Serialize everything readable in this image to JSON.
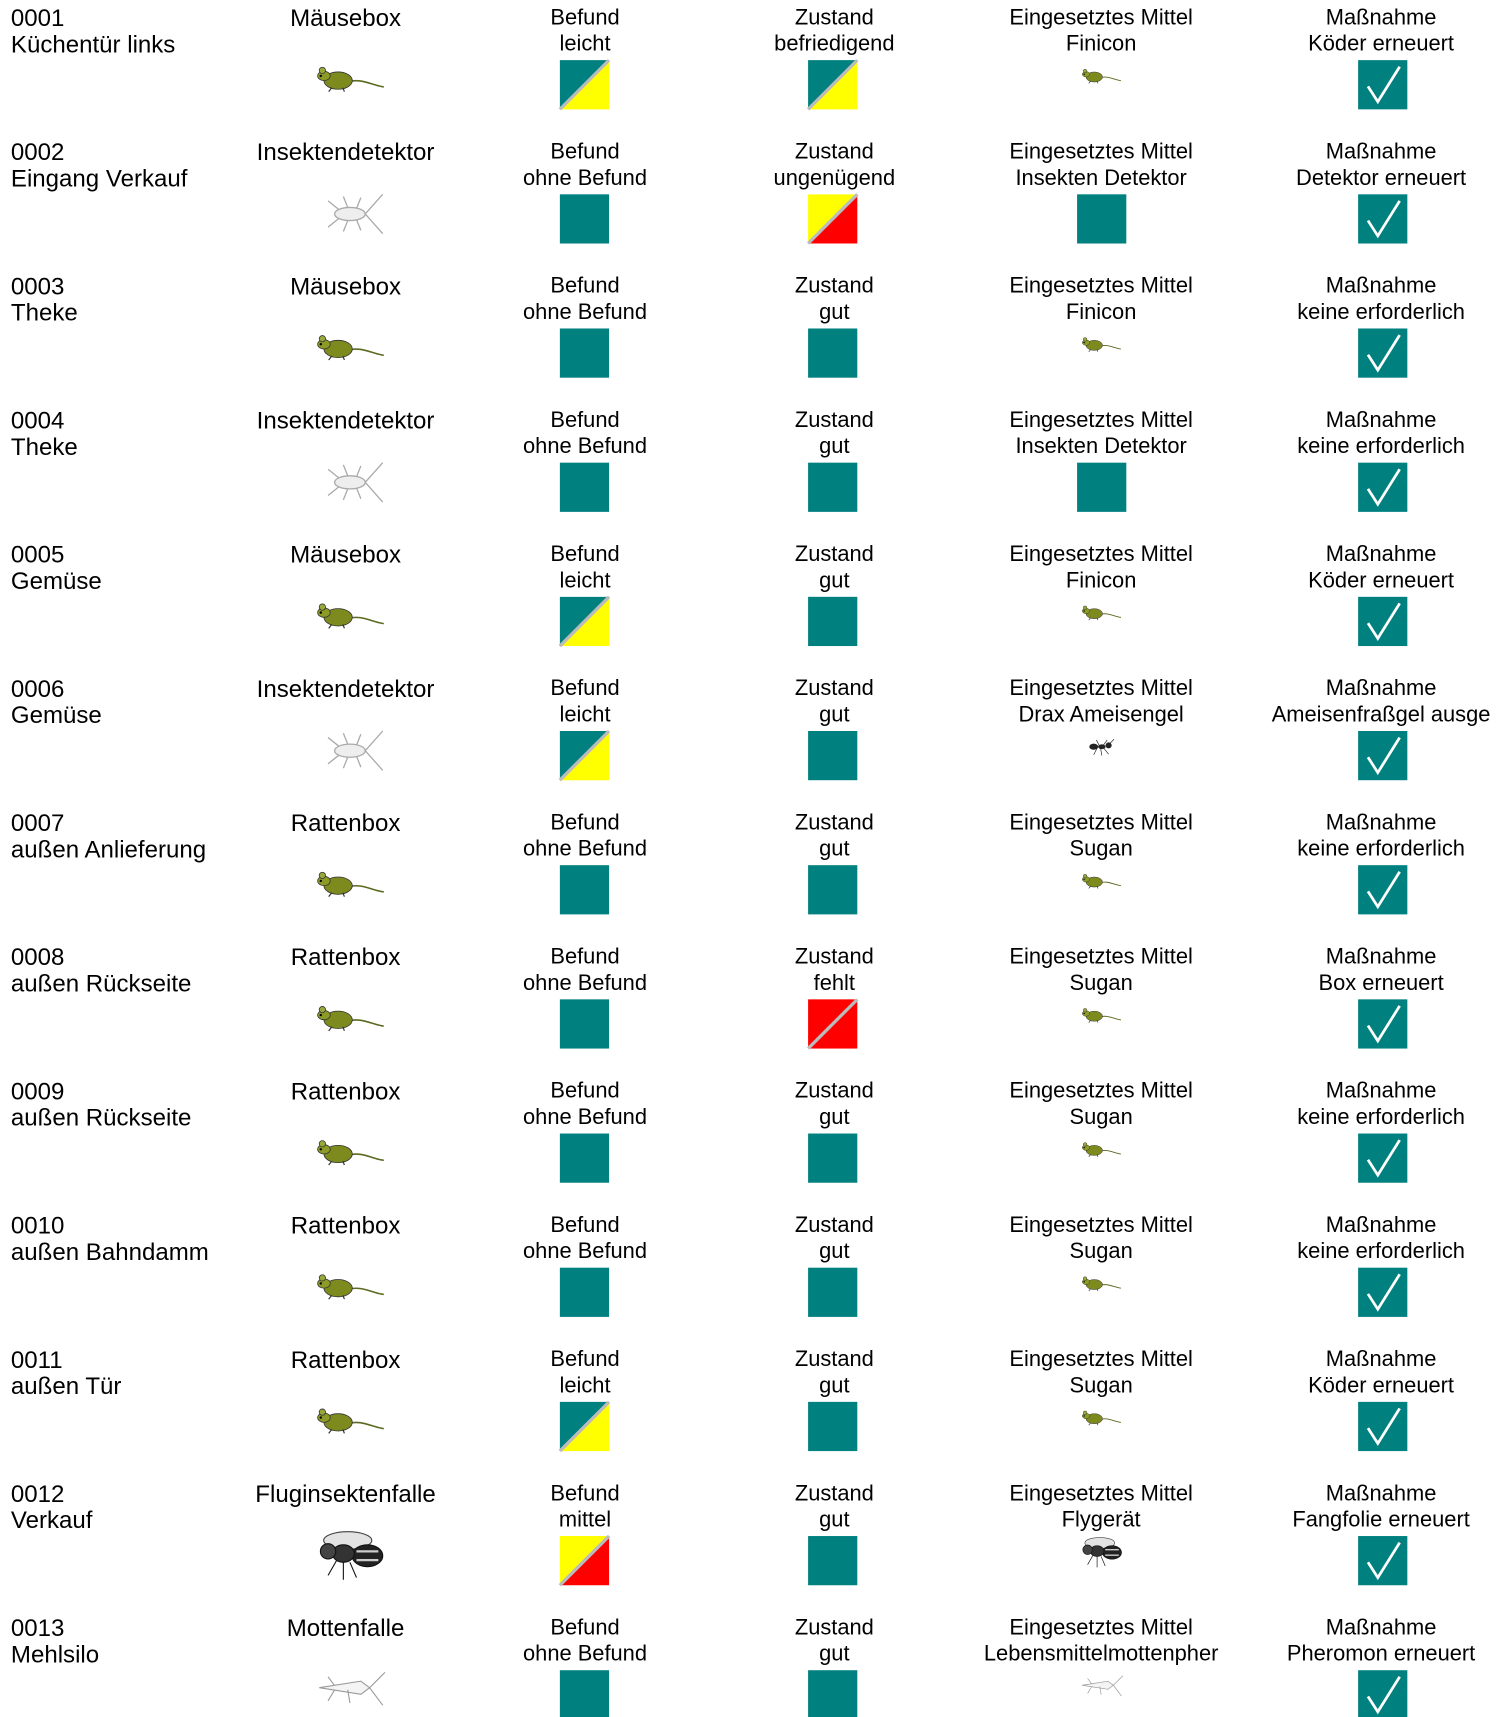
{
  "rows": [
    {
      "id": "0001",
      "location": "Küchentür links",
      "type": "Mäusebox",
      "befund_label": "Befund",
      "befund": "leicht",
      "zustand_label": "Zustand",
      "zustand": "befriedigend",
      "mittel_label": "Eingesetztes Mittel",
      "mittel": "Finicon",
      "massnahme_label": "Maßnahme",
      "massnahme": "Köder erneuert"
    },
    {
      "id": "0002",
      "location": "Eingang Verkauf",
      "type": "Insektendetektor",
      "befund_label": "Befund",
      "befund": "ohne Befund",
      "zustand_label": "Zustand",
      "zustand": "ungenügend",
      "mittel_label": "Eingesetztes Mittel",
      "mittel": "Insekten Detektor",
      "massnahme_label": "Maßnahme",
      "massnahme": "Detektor erneuert"
    },
    {
      "id": "0003",
      "location": "Theke",
      "type": "Mäusebox",
      "befund_label": "Befund",
      "befund": "ohne Befund",
      "zustand_label": "Zustand",
      "zustand": "gut",
      "mittel_label": "Eingesetztes Mittel",
      "mittel": "Finicon",
      "massnahme_label": "Maßnahme",
      "massnahme": "keine erforderlich"
    },
    {
      "id": "0004",
      "location": "Theke",
      "type": "Insektendetektor",
      "befund_label": "Befund",
      "befund": "ohne Befund",
      "zustand_label": "Zustand",
      "zustand": "gut",
      "mittel_label": "Eingesetztes Mittel",
      "mittel": "Insekten Detektor",
      "massnahme_label": "Maßnahme",
      "massnahme": "keine erforderlich"
    },
    {
      "id": "0005",
      "location": "Gemüse",
      "type": "Mäusebox",
      "befund_label": "Befund",
      "befund": "leicht",
      "zustand_label": "Zustand",
      "zustand": "gut",
      "mittel_label": "Eingesetztes Mittel",
      "mittel": "Finicon",
      "massnahme_label": "Maßnahme",
      "massnahme": "Köder erneuert"
    },
    {
      "id": "0006",
      "location": "Gemüse",
      "type": "Insektendetektor",
      "befund_label": "Befund",
      "befund": "leicht",
      "zustand_label": "Zustand",
      "zustand": "gut",
      "mittel_label": "Eingesetztes Mittel",
      "mittel": "Drax Ameisengel",
      "massnahme_label": "Maßnahme",
      "massnahme": "Ameisenfraßgel ausge"
    },
    {
      "id": "0007",
      "location": "außen Anlieferung",
      "type": "Rattenbox",
      "befund_label": "Befund",
      "befund": "ohne Befund",
      "zustand_label": "Zustand",
      "zustand": "gut",
      "mittel_label": "Eingesetztes Mittel",
      "mittel": "Sugan",
      "massnahme_label": "Maßnahme",
      "massnahme": "keine erforderlich"
    },
    {
      "id": "0008",
      "location": "außen Rückseite",
      "type": "Rattenbox",
      "befund_label": "Befund",
      "befund": "ohne Befund",
      "zustand_label": "Zustand",
      "zustand": "fehlt",
      "mittel_label": "Eingesetztes Mittel",
      "mittel": "Sugan",
      "massnahme_label": "Maßnahme",
      "massnahme": "Box erneuert"
    },
    {
      "id": "0009",
      "location": "außen Rückseite",
      "type": "Rattenbox",
      "befund_label": "Befund",
      "befund": "ohne Befund",
      "zustand_label": "Zustand",
      "zustand": "gut",
      "mittel_label": "Eingesetztes Mittel",
      "mittel": "Sugan",
      "massnahme_label": "Maßnahme",
      "massnahme": "keine erforderlich"
    },
    {
      "id": "0010",
      "location": "außen Bahndamm",
      "type": "Rattenbox",
      "befund_label": "Befund",
      "befund": "ohne Befund",
      "zustand_label": "Zustand",
      "zustand": "gut",
      "mittel_label": "Eingesetztes Mittel",
      "mittel": "Sugan",
      "massnahme_label": "Maßnahme",
      "massnahme": "keine erforderlich"
    },
    {
      "id": "0011",
      "location": "außen Tür",
      "type": "Rattenbox",
      "befund_label": "Befund",
      "befund": "leicht",
      "zustand_label": "Zustand",
      "zustand": "gut",
      "mittel_label": "Eingesetztes Mittel",
      "mittel": "Sugan",
      "massnahme_label": "Maßnahme",
      "massnahme": "Köder erneuert"
    },
    {
      "id": "0012",
      "location": "Verkauf",
      "type": "Fluginsektenfalle",
      "befund_label": "Befund",
      "befund": "mittel",
      "zustand_label": "Zustand",
      "zustand": "gut",
      "mittel_label": "Eingesetztes Mittel",
      "mittel": "Flygerät",
      "massnahme_label": "Maßnahme",
      "massnahme": "Fangfolie erneuert"
    },
    {
      "id": "0013",
      "location": "Mehlsilo",
      "type": "Mottenfalle",
      "befund_label": "Befund",
      "befund": "ohne Befund",
      "zustand_label": "Zustand",
      "zustand": "gut",
      "mittel_label": "Eingesetztes Mittel",
      "mittel": "Lebensmittelmottenpher",
      "massnahme_label": "Maßnahme",
      "massnahme": "Pheromon erneuert"
    }
  ]
}
